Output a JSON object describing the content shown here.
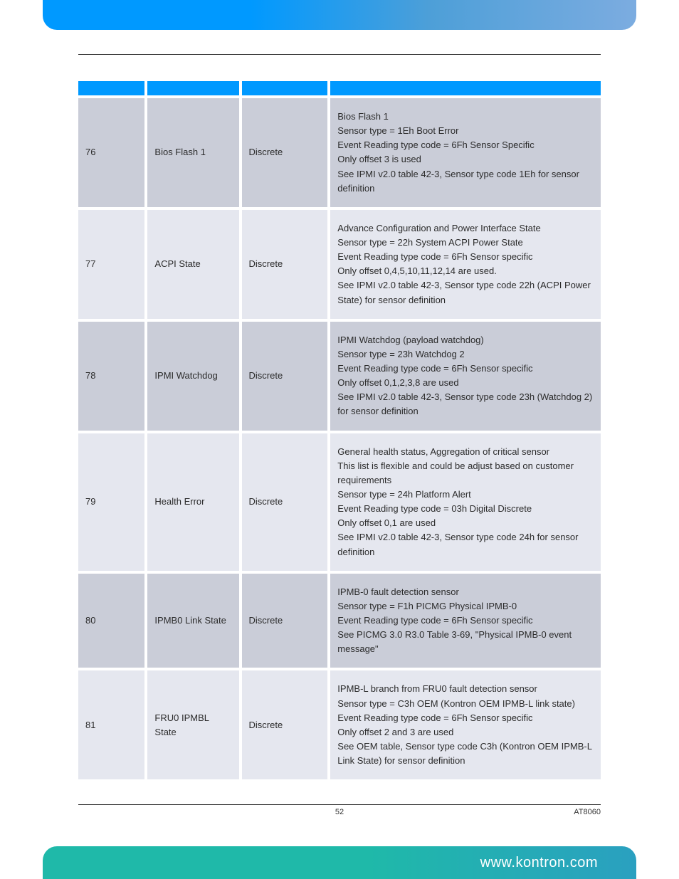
{
  "colors": {
    "header_gradient_start": "#0099ff",
    "header_gradient_end": "#7cace0",
    "footer_gradient_start": "#1fb9a9",
    "footer_gradient_end": "#2aa0c0",
    "row_dark": "#cacdd8",
    "row_light": "#e5e7ef",
    "table_header": "#0099ff",
    "text": "#2b2b2b",
    "footer_text": "#ffffff"
  },
  "table": {
    "column_widths_pct": [
      13,
      18,
      17,
      52
    ],
    "rows": [
      {
        "num": "76",
        "name": "Bios Flash 1",
        "type": "Discrete",
        "desc": [
          "Bios Flash 1",
          "Sensor type = 1Eh Boot Error",
          "Event Reading type code = 6Fh Sensor Specific",
          "Only offset 3 is used",
          "See IPMI v2.0 table 42-3, Sensor type code 1Eh for sensor definition"
        ]
      },
      {
        "num": "77",
        "name": "ACPI State",
        "type": "Discrete",
        "desc": [
          "Advance Configuration and Power Interface State",
          "Sensor type = 22h System ACPI Power State",
          "Event Reading type code = 6Fh Sensor specific",
          "Only offset 0,4,5,10,11,12,14 are used.",
          "See IPMI v2.0 table 42-3, Sensor type code 22h (ACPI Power State) for sensor definition"
        ]
      },
      {
        "num": "78",
        "name": "IPMI Watchdog",
        "type": "Discrete",
        "desc": [
          "IPMI Watchdog (payload watchdog)",
          "Sensor type = 23h Watchdog 2",
          "Event Reading type code = 6Fh Sensor specific",
          "Only offset 0,1,2,3,8 are used",
          "See IPMI v2.0 table 42-3, Sensor type code 23h (Watchdog 2) for sensor definition"
        ]
      },
      {
        "num": "79",
        "name": "Health Error",
        "type": "Discrete",
        "desc": [
          "General health status, Aggregation of critical sensor",
          "This list is flexible and could be adjust based on customer requirements",
          "Sensor type = 24h Platform Alert",
          "Event Reading type code = 03h Digital Discrete",
          "Only offset 0,1 are used",
          "See IPMI v2.0 table 42-3, Sensor type code 24h for sensor definition"
        ]
      },
      {
        "num": "80",
        "name": "IPMB0 Link State",
        "type": "Discrete",
        "desc": [
          "IPMB-0 fault detection sensor",
          "Sensor type = F1h PICMG Physical IPMB-0",
          "Event Reading type code = 6Fh Sensor specific",
          "See PICMG 3.0 R3.0 Table 3-69, \"Physical IPMB-0 event message\""
        ]
      },
      {
        "num": "81",
        "name": "FRU0 IPMBL State",
        "type": "Discrete",
        "desc": [
          "IPMB-L branch from FRU0 fault detection sensor",
          "Sensor type = C3h OEM (Kontron OEM IPMB-L link state)",
          "Event Reading type code = 6Fh Sensor specific",
          "Only offset 2 and 3 are used",
          "See OEM table, Sensor type code C3h (Kontron OEM IPMB-L Link State) for sensor definition"
        ]
      }
    ]
  },
  "footer": {
    "page_number": "52",
    "doc_id": "AT8060",
    "url": "www.kontron.com"
  }
}
